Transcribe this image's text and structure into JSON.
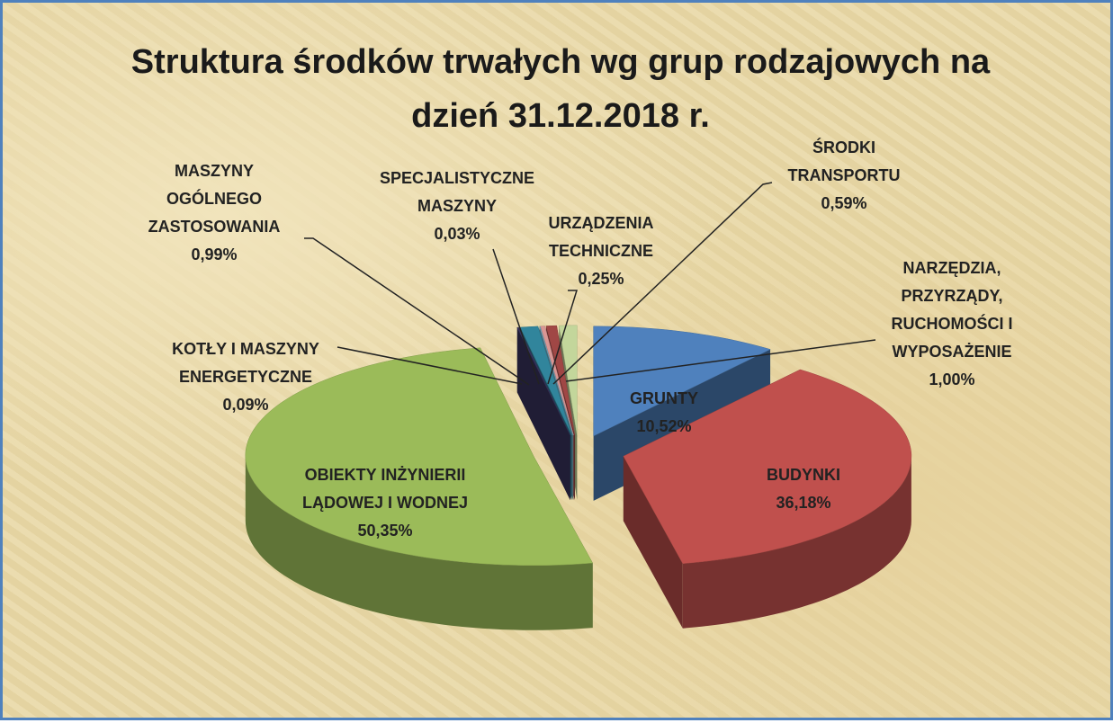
{
  "chart_data": {
    "type": "pie3d",
    "title": "Struktura środków trwałych wg grup rodzajowych na dzień 31.12.2018 r.",
    "categories": [
      "GRUNTY",
      "BUDYNKI",
      "OBIEKTY INŻYNIERII LĄDOWEJ I WODNEJ",
      "KOTŁY I MASZYNY ENERGETYCZNE",
      "MASZYNY OGÓLNEGO ZASTOSOWANIA",
      "SPECJALISTYCZNE MASZYNY",
      "URZĄDZENIA TECHNICZNE",
      "ŚRODKI TRANSPORTU",
      "NARZĘDZIA, PRZYRZĄDY, RUCHOMOŚCI I WYPOSAŻENIE"
    ],
    "values": [
      10.52,
      36.18,
      50.35,
      0.09,
      0.99,
      0.03,
      0.25,
      0.59,
      1.0
    ],
    "value_labels": [
      "10,52%",
      "36,18%",
      "50,35%",
      "0,09%",
      "0,99%",
      "0,03%",
      "0,25%",
      "0,59%",
      "1,00%"
    ],
    "colors": [
      "#4f81bd",
      "#c0504d",
      "#9bbb59",
      "#3a3560",
      "#31859c",
      "#7fb8d0",
      "#d99694",
      "#a04745",
      "#c3d69b"
    ]
  }
}
